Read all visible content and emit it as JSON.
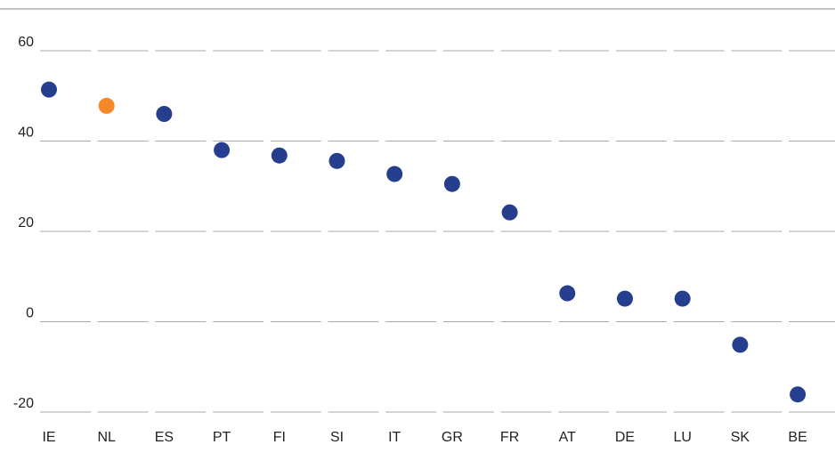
{
  "chart_data": {
    "type": "dot",
    "categories": [
      "IE",
      "NL",
      "ES",
      "PT",
      "FI",
      "SI",
      "IT",
      "GR",
      "FR",
      "AT",
      "DE",
      "LU",
      "SK",
      "BE"
    ],
    "values": [
      51.4,
      47.8,
      46,
      38,
      36.8,
      35.6,
      32.7,
      30.5,
      24.2,
      6.3,
      5.1,
      5.1,
      -5.1,
      -16.1
    ],
    "colors": [
      "#263e8e",
      "#f5892a",
      "#263e8e",
      "#263e8e",
      "#263e8e",
      "#263e8e",
      "#263e8e",
      "#263e8e",
      "#263e8e",
      "#263e8e",
      "#263e8e",
      "#263e8e",
      "#263e8e",
      "#263e8e"
    ],
    "ylim": [
      -20,
      60
    ],
    "yticks": [
      -20,
      0,
      20,
      40,
      60
    ],
    "grid": true
  }
}
